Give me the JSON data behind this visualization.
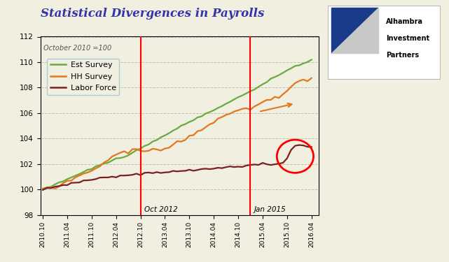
{
  "title": "Statistical Divergences in Payrolls",
  "subtitle": "October 2010 =100",
  "ylim": [
    98.0,
    112.0
  ],
  "yticks": [
    98.0,
    100.0,
    102.0,
    104.0,
    106.0,
    108.0,
    110.0,
    112.0
  ],
  "bg_color": "#f0efe0",
  "title_color": "#3333aa",
  "est_color": "#6aaa40",
  "hh_color": "#e07820",
  "lf_color": "#7b2020",
  "xtick_labels": [
    "2010.10",
    "2011.04",
    "2011.10",
    "2012.04",
    "2012.10",
    "2013.04",
    "2013.10",
    "2014.04",
    "2014.10",
    "2015.04",
    "2015.10",
    "2016.04"
  ],
  "vline1_label": "Oct 2012",
  "vline2_label": "Jan 2015"
}
